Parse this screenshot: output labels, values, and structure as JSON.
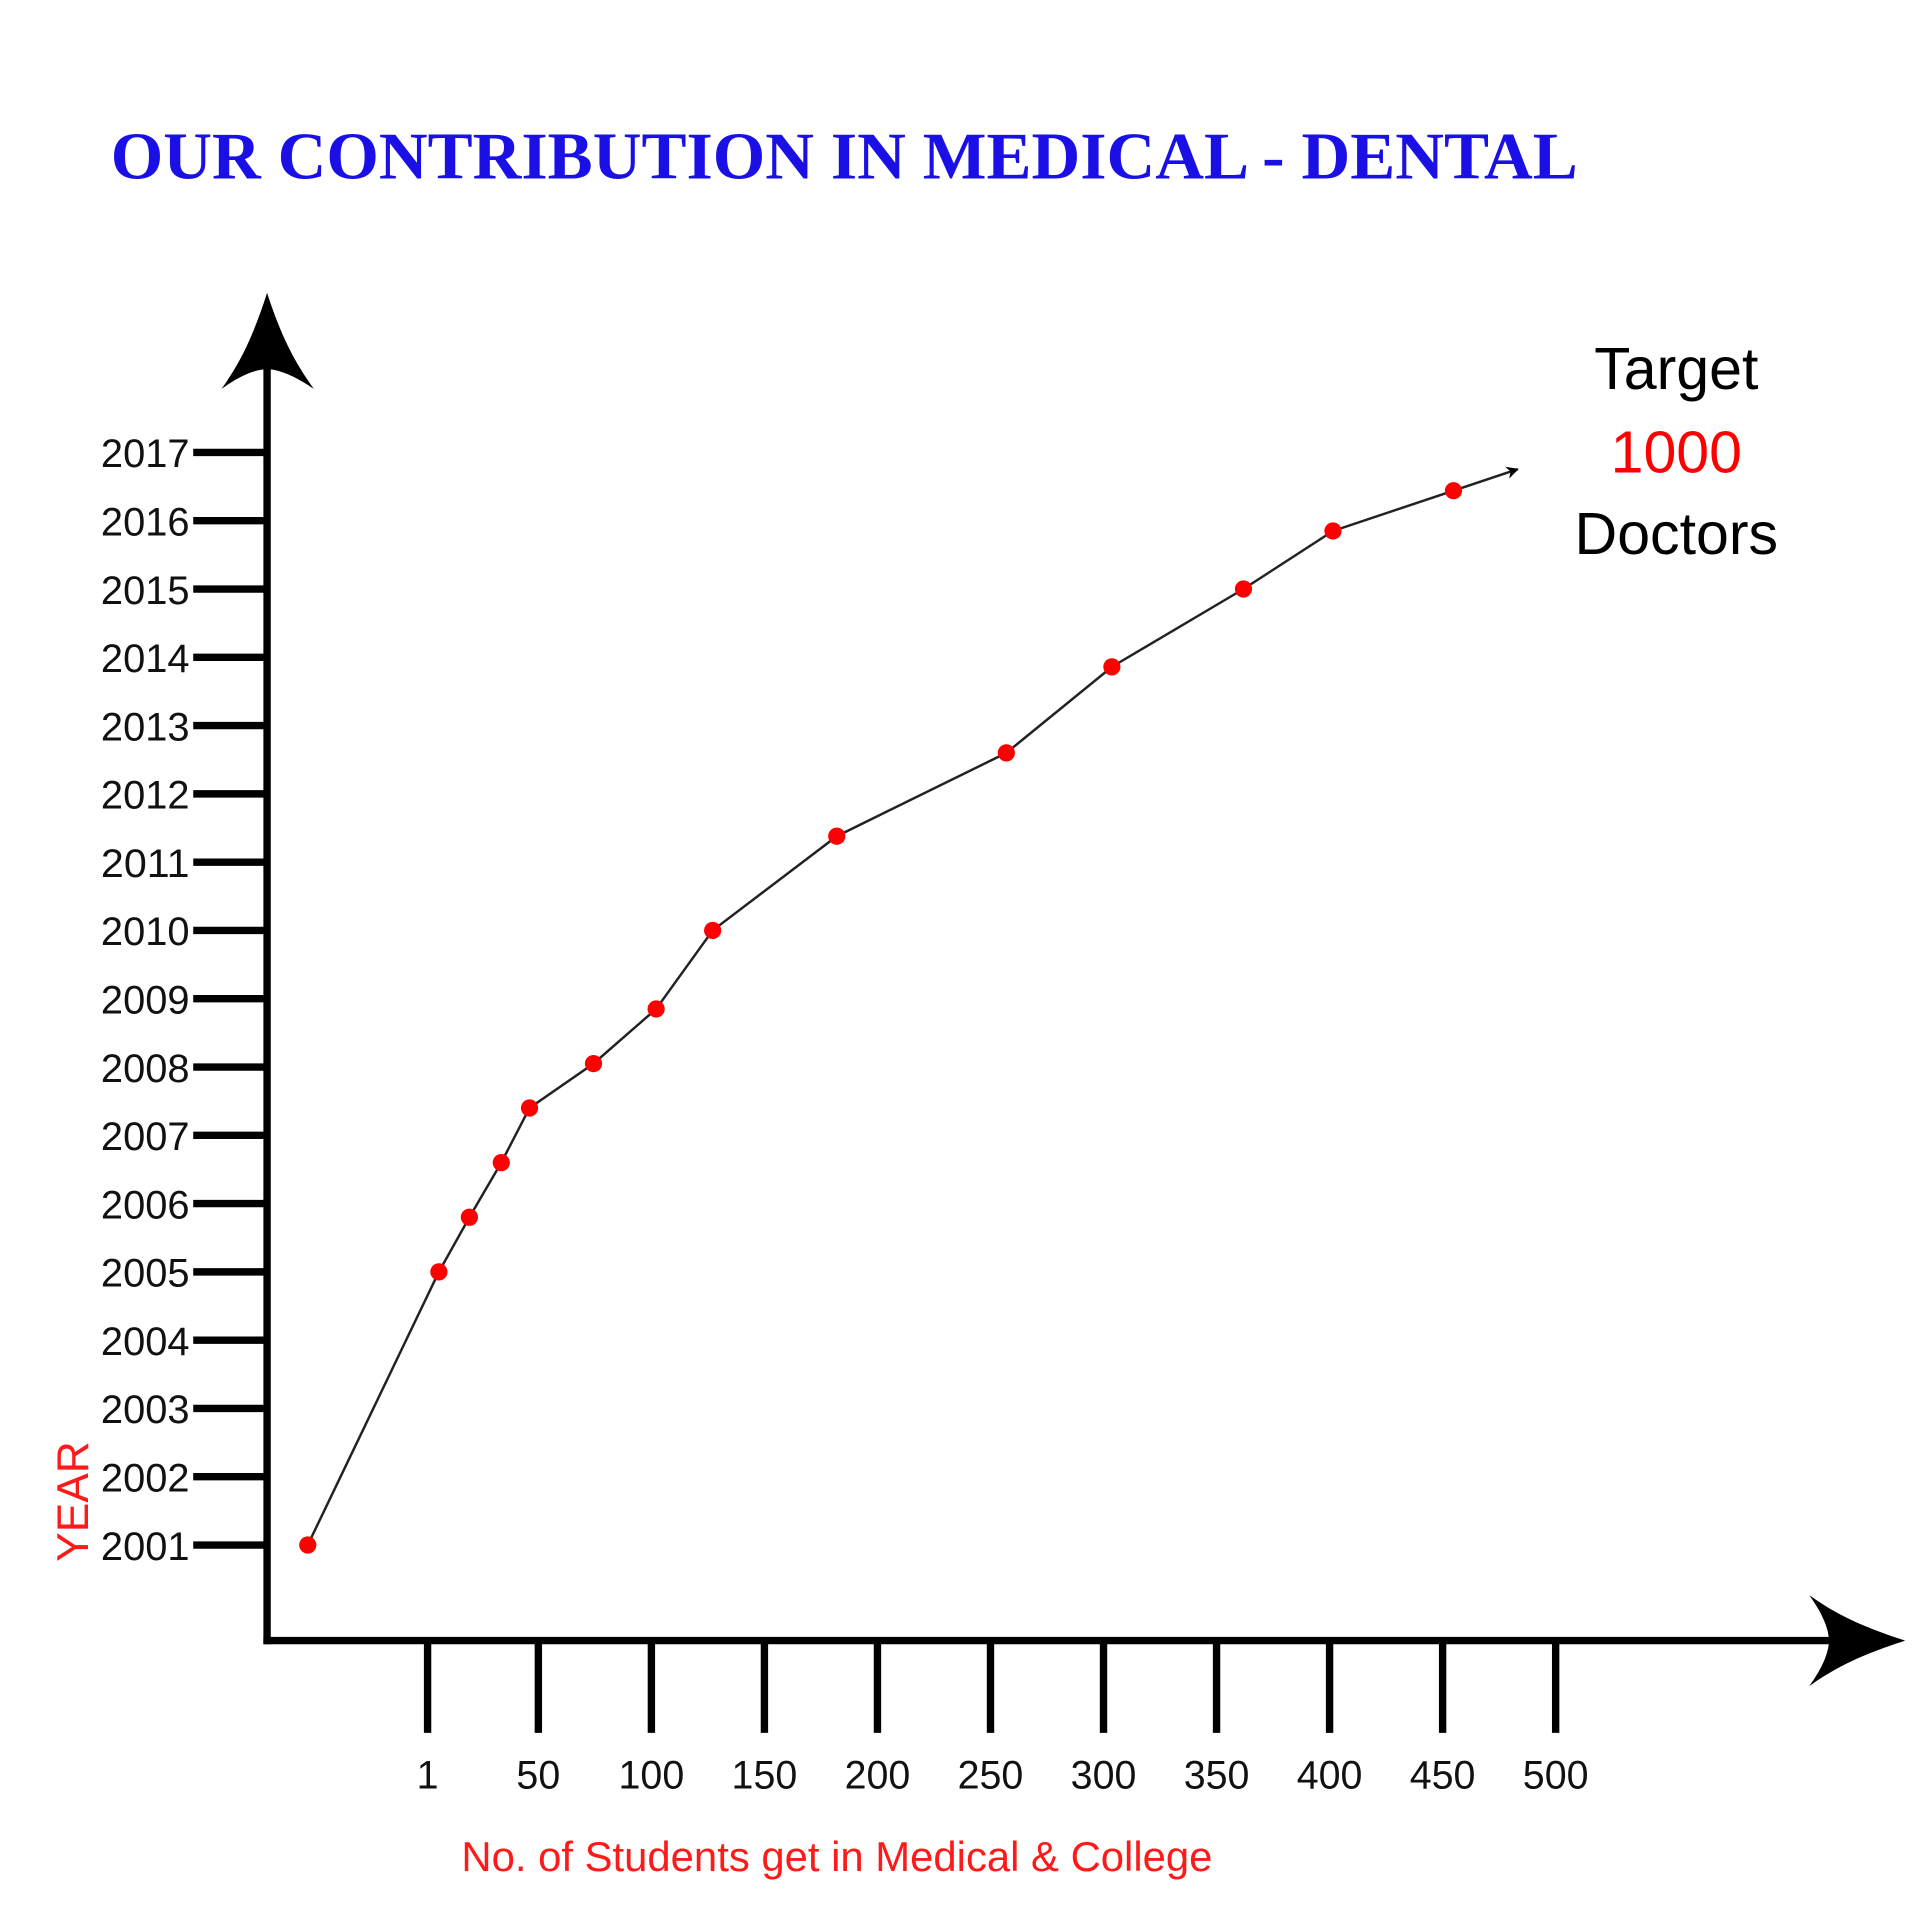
{
  "chart_data": {
    "type": "line",
    "title": "OUR CONTRIBUTION IN MEDICAL - DENTAL",
    "x_label": "No. of Students get in Medical & College",
    "y_label": "YEAR",
    "annotation": [
      "Target",
      "1000",
      "Doctors"
    ],
    "series": [
      {
        "color": "#ff0000",
        "x": [
          -52,
          6,
          19.5,
          33.6,
          46.1,
          74.4,
          102.1,
          127.1,
          182,
          257,
          303.7,
          361.9,
          401.5,
          454.8
        ],
        "values": [
          2001,
          2005,
          2005.8,
          2006.6,
          2007.4,
          2008.05,
          2008.85,
          2010,
          2011.38,
          2012.6,
          2013.86,
          2015,
          2015.85,
          2016.44
        ]
      }
    ],
    "xlim": [
      -70,
      653
    ],
    "ylim": [
      1999.6,
      2019.3
    ],
    "xticks": [
      1,
      50,
      100,
      150,
      200,
      250,
      300,
      350,
      400,
      450,
      500
    ],
    "yticks": [
      2001,
      2002,
      2003,
      2004,
      2005,
      2006,
      2007,
      2008,
      2009,
      2010,
      2011,
      2012,
      2013,
      2014,
      2015,
      2016,
      2017
    ]
  }
}
